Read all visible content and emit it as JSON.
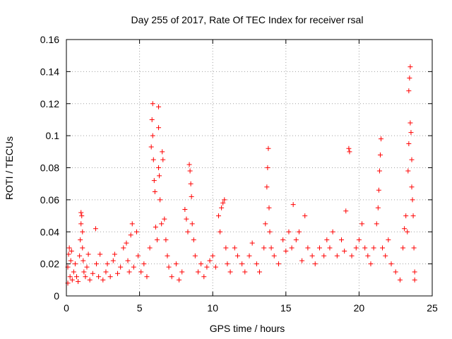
{
  "chart_data": {
    "type": "scatter",
    "title": "Day 255 of 2017, Rate Of TEC Index for receiver rsal",
    "xlabel": "GPS time / hours",
    "ylabel": "ROTI / TECUs",
    "xlim": [
      0,
      25
    ],
    "ylim": [
      0,
      0.16
    ],
    "xticks": [
      0,
      5,
      10,
      15,
      20,
      25
    ],
    "xtick_labels": [
      "0",
      "5",
      "10",
      "15",
      "20",
      "25"
    ],
    "yticks": [
      0,
      0.02,
      0.04,
      0.06,
      0.08,
      0.1,
      0.12,
      0.14,
      0.16
    ],
    "ytick_labels": [
      "0",
      "0.02",
      "0.04",
      "0.06",
      "0.08",
      "0.1",
      "0.12",
      "0.14",
      "0.16"
    ],
    "grid": true,
    "legend": "none",
    "marker": "plus",
    "color": "#ff0000",
    "series": [
      {
        "points": [
          [
            0.1,
            0.008
          ],
          [
            0.1,
            0.018
          ],
          [
            0.15,
            0.026
          ],
          [
            0.2,
            0.03
          ],
          [
            0.25,
            0.012
          ],
          [
            0.3,
            0.022
          ],
          [
            0.35,
            0.028
          ],
          [
            0.4,
            0.01
          ],
          [
            0.5,
            0.015
          ],
          [
            0.6,
            0.02
          ],
          [
            0.7,
            0.012
          ],
          [
            0.8,
            0.009
          ],
          [
            0.9,
            0.025
          ],
          [
            0.95,
            0.035
          ],
          [
            1.0,
            0.052
          ],
          [
            1.0,
            0.045
          ],
          [
            1.05,
            0.05
          ],
          [
            1.1,
            0.04
          ],
          [
            1.1,
            0.03
          ],
          [
            1.15,
            0.022
          ],
          [
            1.2,
            0.015
          ],
          [
            1.3,
            0.012
          ],
          [
            1.4,
            0.018
          ],
          [
            1.5,
            0.026
          ],
          [
            1.6,
            0.01
          ],
          [
            1.8,
            0.014
          ],
          [
            2.0,
            0.042
          ],
          [
            2.05,
            0.02
          ],
          [
            2.2,
            0.012
          ],
          [
            2.3,
            0.026
          ],
          [
            2.5,
            0.01
          ],
          [
            2.7,
            0.015
          ],
          [
            2.8,
            0.02
          ],
          [
            3.0,
            0.012
          ],
          [
            3.2,
            0.022
          ],
          [
            3.3,
            0.026
          ],
          [
            3.5,
            0.014
          ],
          [
            3.7,
            0.018
          ],
          [
            3.9,
            0.03
          ],
          [
            4.1,
            0.033
          ],
          [
            4.2,
            0.022
          ],
          [
            4.3,
            0.015
          ],
          [
            4.4,
            0.038
          ],
          [
            4.5,
            0.045
          ],
          [
            4.6,
            0.018
          ],
          [
            4.8,
            0.04
          ],
          [
            4.9,
            0.025
          ],
          [
            5.1,
            0.015
          ],
          [
            5.3,
            0.02
          ],
          [
            5.5,
            0.012
          ],
          [
            5.7,
            0.03
          ],
          [
            5.8,
            0.093
          ],
          [
            5.85,
            0.11
          ],
          [
            5.9,
            0.12
          ],
          [
            5.9,
            0.1
          ],
          [
            5.95,
            0.085
          ],
          [
            6.0,
            0.072
          ],
          [
            6.05,
            0.065
          ],
          [
            6.1,
            0.043
          ],
          [
            6.2,
            0.035
          ],
          [
            6.3,
            0.118
          ],
          [
            6.3,
            0.105
          ],
          [
            6.3,
            0.08
          ],
          [
            6.35,
            0.075
          ],
          [
            6.4,
            0.06
          ],
          [
            6.5,
            0.045
          ],
          [
            6.55,
            0.09
          ],
          [
            6.6,
            0.085
          ],
          [
            6.7,
            0.048
          ],
          [
            6.8,
            0.035
          ],
          [
            6.9,
            0.025
          ],
          [
            7.0,
            0.018
          ],
          [
            7.2,
            0.012
          ],
          [
            7.5,
            0.02
          ],
          [
            7.7,
            0.01
          ],
          [
            7.9,
            0.015
          ],
          [
            8.1,
            0.054
          ],
          [
            8.2,
            0.048
          ],
          [
            8.3,
            0.04
          ],
          [
            8.4,
            0.082
          ],
          [
            8.45,
            0.078
          ],
          [
            8.5,
            0.07
          ],
          [
            8.55,
            0.062
          ],
          [
            8.6,
            0.045
          ],
          [
            8.7,
            0.035
          ],
          [
            8.8,
            0.025
          ],
          [
            9.0,
            0.015
          ],
          [
            9.2,
            0.02
          ],
          [
            9.4,
            0.012
          ],
          [
            9.6,
            0.018
          ],
          [
            9.8,
            0.022
          ],
          [
            10.0,
            0.025
          ],
          [
            10.2,
            0.018
          ],
          [
            10.4,
            0.05
          ],
          [
            10.5,
            0.04
          ],
          [
            10.6,
            0.055
          ],
          [
            10.7,
            0.058
          ],
          [
            10.8,
            0.06
          ],
          [
            10.9,
            0.03
          ],
          [
            11.0,
            0.02
          ],
          [
            11.2,
            0.015
          ],
          [
            11.5,
            0.03
          ],
          [
            11.7,
            0.025
          ],
          [
            12.0,
            0.02
          ],
          [
            12.2,
            0.015
          ],
          [
            12.5,
            0.025
          ],
          [
            12.7,
            0.033
          ],
          [
            13.0,
            0.02
          ],
          [
            13.2,
            0.015
          ],
          [
            13.5,
            0.03
          ],
          [
            13.6,
            0.045
          ],
          [
            13.7,
            0.068
          ],
          [
            13.75,
            0.08
          ],
          [
            13.8,
            0.092
          ],
          [
            13.85,
            0.055
          ],
          [
            13.9,
            0.04
          ],
          [
            14.0,
            0.03
          ],
          [
            14.2,
            0.025
          ],
          [
            14.5,
            0.02
          ],
          [
            14.8,
            0.035
          ],
          [
            15.0,
            0.028
          ],
          [
            15.2,
            0.04
          ],
          [
            15.4,
            0.03
          ],
          [
            15.5,
            0.057
          ],
          [
            15.7,
            0.035
          ],
          [
            15.9,
            0.04
          ],
          [
            16.1,
            0.022
          ],
          [
            16.3,
            0.05
          ],
          [
            16.5,
            0.03
          ],
          [
            16.8,
            0.025
          ],
          [
            17.0,
            0.02
          ],
          [
            17.3,
            0.03
          ],
          [
            17.6,
            0.025
          ],
          [
            17.8,
            0.035
          ],
          [
            18.0,
            0.03
          ],
          [
            18.2,
            0.04
          ],
          [
            18.5,
            0.025
          ],
          [
            18.8,
            0.035
          ],
          [
            19.0,
            0.028
          ],
          [
            19.1,
            0.053
          ],
          [
            19.3,
            0.092
          ],
          [
            19.35,
            0.09
          ],
          [
            19.5,
            0.025
          ],
          [
            19.8,
            0.03
          ],
          [
            20.0,
            0.035
          ],
          [
            20.2,
            0.045
          ],
          [
            20.4,
            0.03
          ],
          [
            20.6,
            0.025
          ],
          [
            20.8,
            0.02
          ],
          [
            21.0,
            0.03
          ],
          [
            21.2,
            0.045
          ],
          [
            21.3,
            0.055
          ],
          [
            21.35,
            0.066
          ],
          [
            21.4,
            0.078
          ],
          [
            21.45,
            0.088
          ],
          [
            21.5,
            0.098
          ],
          [
            21.6,
            0.03
          ],
          [
            21.8,
            0.025
          ],
          [
            22.0,
            0.035
          ],
          [
            22.2,
            0.02
          ],
          [
            22.5,
            0.015
          ],
          [
            22.8,
            0.01
          ],
          [
            23.0,
            0.03
          ],
          [
            23.1,
            0.042
          ],
          [
            23.2,
            0.05
          ],
          [
            23.3,
            0.04
          ],
          [
            23.35,
            0.078
          ],
          [
            23.4,
            0.095
          ],
          [
            23.4,
            0.128
          ],
          [
            23.45,
            0.136
          ],
          [
            23.5,
            0.143
          ],
          [
            23.5,
            0.108
          ],
          [
            23.55,
            0.102
          ],
          [
            23.6,
            0.085
          ],
          [
            23.6,
            0.068
          ],
          [
            23.65,
            0.06
          ],
          [
            23.7,
            0.05
          ],
          [
            23.75,
            0.03
          ],
          [
            23.8,
            0.015
          ],
          [
            23.8,
            0.01
          ]
        ]
      }
    ]
  }
}
